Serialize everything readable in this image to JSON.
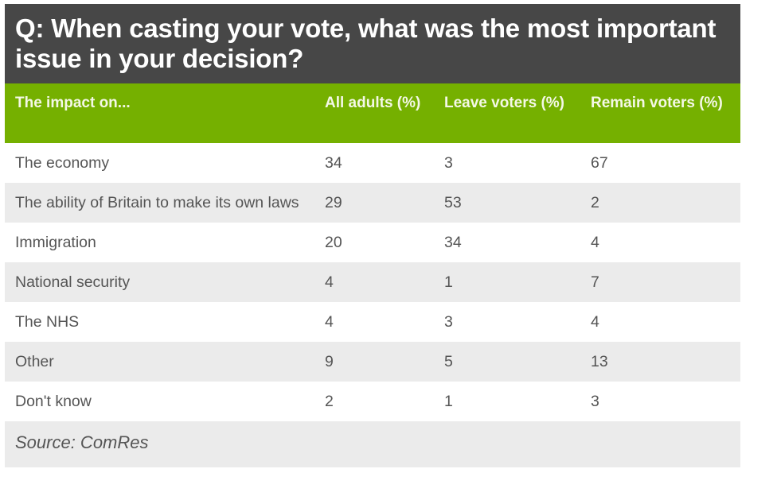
{
  "title": "Q: When casting your vote, what was the most important issue in your decision?",
  "colors": {
    "title_bg": "#474747",
    "header_bg": "#75b000",
    "stripe": "#ebebeb"
  },
  "chart_data": {
    "type": "table",
    "title": "Q: When casting your vote, what was the most important issue in your decision?",
    "columns": [
      "The impact on...",
      "All adults (%)",
      "Leave voters (%)",
      "Remain voters (%)"
    ],
    "rows": [
      [
        "The economy",
        "34",
        "3",
        "67"
      ],
      [
        "The ability of Britain to make its own laws",
        "29",
        "53",
        "2"
      ],
      [
        "Immigration",
        "20",
        "34",
        "4"
      ],
      [
        "National security",
        "4",
        "1",
        "7"
      ],
      [
        "The NHS",
        "4",
        "3",
        "4"
      ],
      [
        "Other",
        "9",
        "5",
        "13"
      ],
      [
        "Don't know",
        "2",
        "1",
        "3"
      ]
    ],
    "source": "Source: ComRes"
  }
}
